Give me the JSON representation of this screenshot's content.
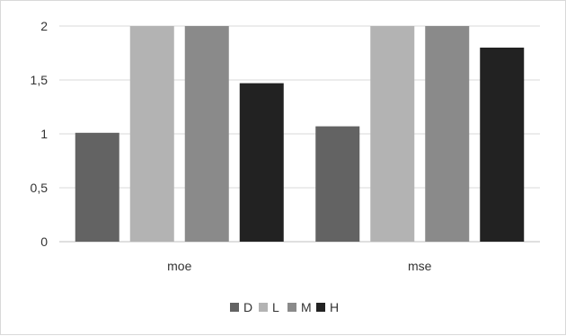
{
  "chart_data": {
    "type": "bar",
    "title": "",
    "xlabel": "",
    "ylabel": "",
    "categories": [
      "moe",
      "mse"
    ],
    "series": [
      {
        "name": "D",
        "values": [
          1.01,
          1.07
        ],
        "color": "#636363"
      },
      {
        "name": "L",
        "values": [
          2,
          2
        ],
        "color": "#b3b3b3"
      },
      {
        "name": "M",
        "values": [
          2,
          2
        ],
        "color": "#8a8a8a"
      },
      {
        "name": "H",
        "values": [
          1.47,
          1.8
        ],
        "color": "#222222"
      }
    ],
    "ylim": [
      0,
      2
    ],
    "yticks": [
      0,
      0.5,
      1,
      1.5,
      2
    ],
    "ytick_labels": [
      "0",
      "0,5",
      "1",
      "1,5",
      "2"
    ],
    "grid": true,
    "legend_position": "bottom"
  }
}
